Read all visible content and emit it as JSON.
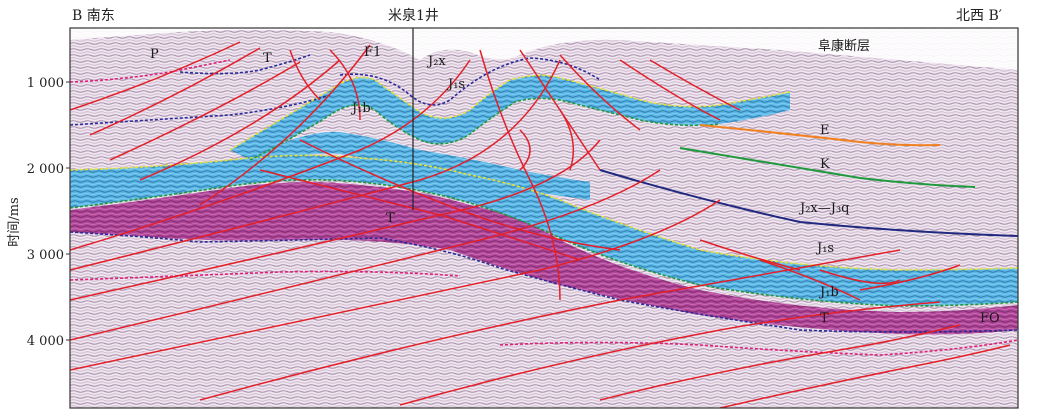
{
  "header": {
    "left_label": "B 南东",
    "well_label": "米泉1井",
    "right_label": "北西 B′"
  },
  "y_axis": {
    "label": "时间/ms",
    "ticks": [
      "1 000",
      "2 000",
      "3 000",
      "4 000"
    ]
  },
  "units": {
    "P": "P",
    "T_top": "T",
    "F1": "F1",
    "J2x_top": "J₂x",
    "J1s_top": "J₁s",
    "fault_name": "阜康断层",
    "J1b_left": "J₁b",
    "E": "E",
    "K": "K",
    "J2x_J3q": "J₂x—J₃q",
    "T_mid": "T",
    "J1s_right": "J₁s",
    "J1b_right": "J₁b",
    "T_right": "T",
    "FO": "FO"
  },
  "colors": {
    "fault": "#e3202a",
    "blue_fill": "#5ab8e8",
    "magenta_fill": "#b3479a",
    "purple_horizon": "#2a2a9a",
    "yellow_horizon": "#e8e030",
    "green_horizon": "#1e9a3c",
    "orange_horizon": "#f08020",
    "navy_horizon": "#202880",
    "pink_horizon": "#e0207a"
  }
}
